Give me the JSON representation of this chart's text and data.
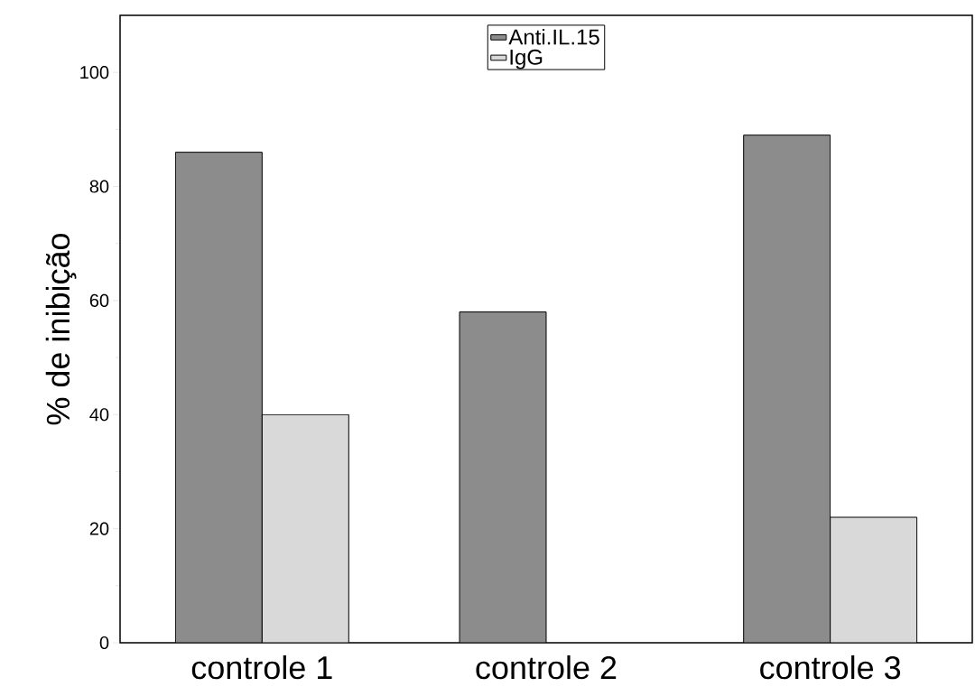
{
  "chart_data": {
    "type": "bar",
    "ylabel": "% de inibição",
    "categories": [
      "controle 1",
      "controle 2",
      "controle 3"
    ],
    "series": [
      {
        "name": "Anti.IL.15",
        "color": "#8c8c8c",
        "values": [
          86,
          58,
          89
        ]
      },
      {
        "name": "IgG",
        "color": "#d9d9d9",
        "values": [
          40,
          null,
          22
        ]
      }
    ],
    "ylim": [
      0,
      110
    ],
    "yticks": [
      0,
      20,
      40,
      60,
      80,
      100
    ],
    "legend": "top",
    "grid": false
  }
}
